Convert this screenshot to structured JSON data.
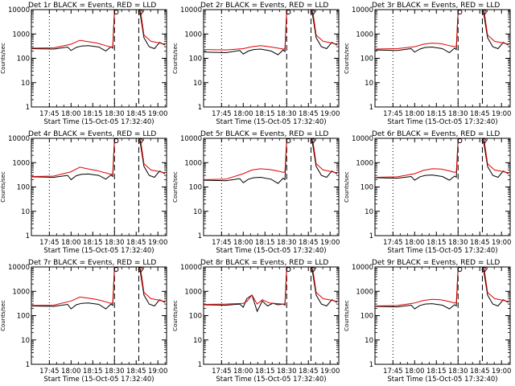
{
  "figure": {
    "shared_xlabel": "Start Time (15-Oct-05 17:32:40)"
  },
  "chart_data": [
    {
      "type": "line",
      "title": "Det 1r BLACK = Events, RED = LLD",
      "ylabel": "Counts/sec",
      "xlabel": "Start Time (15-Oct-05 17:32:40)",
      "yscale": "log",
      "ylim": [
        1,
        10000
      ],
      "xlim": [
        17.543,
        19.1
      ],
      "yticks": [
        "1",
        "10",
        "100",
        "1000",
        "10000"
      ],
      "xticks": [
        "17:45",
        "18:00",
        "18:15",
        "18:30",
        "18:45",
        "19:00"
      ],
      "vlines": [
        {
          "x": 17.75,
          "style": "dotted"
        },
        {
          "x": 18.5,
          "style": "dashed"
        },
        {
          "x": 18.78,
          "style": "dashed"
        }
      ],
      "series": [
        {
          "name": "Events",
          "color": "#000000",
          "x": [
            17.55,
            17.8,
            17.96,
            18.0,
            18.06,
            18.12,
            18.2,
            18.32,
            18.4,
            18.46,
            18.48,
            18.5,
            18.515,
            18.53
          ],
          "y": [
            250,
            240,
            290,
            210,
            280,
            320,
            330,
            290,
            200,
            300,
            260,
            9500,
            12000,
            12000
          ]
        },
        {
          "name": "LLD",
          "color": "#e00000",
          "x": [
            17.55,
            17.8,
            18.0,
            18.1,
            18.2,
            18.3,
            18.4,
            18.46,
            18.48,
            18.5,
            18.515,
            18.53
          ],
          "y": [
            260,
            270,
            380,
            550,
            480,
            420,
            330,
            290,
            300,
            9500,
            12000,
            12000
          ]
        }
      ]
    },
    {
      "type": "line",
      "title": "Det 2r BLACK = Events, RED = LLD",
      "ylabel": "Counts/sec",
      "xlabel": "Start Time (15-Oct-05 17:32:40)",
      "yscale": "log",
      "ylim": [
        1,
        10000
      ],
      "xlim": [
        17.543,
        19.1
      ],
      "yticks": [
        "1",
        "10",
        "100",
        "1000",
        "10000"
      ],
      "xticks": [
        "17:45",
        "18:00",
        "18:15",
        "18:30",
        "18:45",
        "19:00"
      ],
      "vlines": [
        {
          "x": 17.75,
          "style": "dotted"
        },
        {
          "x": 18.5,
          "style": "dashed"
        },
        {
          "x": 18.78,
          "style": "dashed"
        }
      ],
      "series": [
        {
          "name": "Events",
          "color": "#000000",
          "x": [
            17.55,
            17.8,
            17.96,
            18.0,
            18.06,
            18.12,
            18.2,
            18.32,
            18.4,
            18.46,
            18.48,
            18.5,
            18.515,
            18.53
          ],
          "y": [
            180,
            170,
            210,
            150,
            200,
            230,
            240,
            200,
            140,
            220,
            190,
            9500,
            12000,
            12000
          ]
        },
        {
          "name": "LLD",
          "color": "#e00000",
          "x": [
            17.55,
            17.8,
            18.0,
            18.1,
            18.2,
            18.3,
            18.4,
            18.46,
            18.48,
            18.5,
            18.515,
            18.53
          ],
          "y": [
            230,
            220,
            250,
            300,
            330,
            300,
            260,
            240,
            250,
            9500,
            12000,
            12000
          ]
        }
      ]
    },
    {
      "type": "line",
      "title": "Det 3r BLACK = Events, RED = LLD",
      "ylabel": "Counts/sec",
      "xlabel": "Start Time (15-Oct-05 17:32:40)",
      "yscale": "log",
      "ylim": [
        1,
        10000
      ],
      "xlim": [
        17.543,
        19.1
      ],
      "yticks": [
        "1",
        "10",
        "100",
        "1000",
        "10000"
      ],
      "xticks": [
        "17:45",
        "18:00",
        "18:15",
        "18:30",
        "18:45",
        "19:00"
      ],
      "vlines": [
        {
          "x": 17.75,
          "style": "dotted"
        },
        {
          "x": 18.5,
          "style": "dashed"
        },
        {
          "x": 18.78,
          "style": "dashed"
        }
      ],
      "series": [
        {
          "name": "Events",
          "color": "#000000",
          "x": [
            17.55,
            17.8,
            17.96,
            18.0,
            18.06,
            18.12,
            18.2,
            18.32,
            18.4,
            18.46,
            18.48,
            18.5,
            18.515,
            18.53
          ],
          "y": [
            220,
            210,
            250,
            180,
            240,
            280,
            290,
            250,
            170,
            260,
            230,
            9500,
            12000,
            12000
          ]
        },
        {
          "name": "LLD",
          "color": "#e00000",
          "x": [
            17.55,
            17.8,
            18.0,
            18.1,
            18.2,
            18.3,
            18.4,
            18.46,
            18.48,
            18.5,
            18.515,
            18.53
          ],
          "y": [
            240,
            250,
            300,
            380,
            420,
            400,
            330,
            300,
            310,
            9500,
            12000,
            12000
          ]
        }
      ]
    },
    {
      "type": "line",
      "title": "Det 4r BLACK = Events, RED = LLD",
      "ylabel": "Counts/sec",
      "xlabel": "Start Time (15-Oct-05 17:32:40)",
      "yscale": "log",
      "ylim": [
        1,
        10000
      ],
      "xlim": [
        17.543,
        19.1
      ],
      "yticks": [
        "1",
        "10",
        "100",
        "1000",
        "10000"
      ],
      "xticks": [
        "17:45",
        "18:00",
        "18:15",
        "18:30",
        "18:45",
        "19:00"
      ],
      "vlines": [
        {
          "x": 17.75,
          "style": "dotted"
        },
        {
          "x": 18.5,
          "style": "dashed"
        },
        {
          "x": 18.78,
          "style": "dashed"
        }
      ],
      "series": [
        {
          "name": "Events",
          "color": "#000000",
          "x": [
            17.55,
            17.8,
            17.96,
            18.0,
            18.06,
            18.12,
            18.2,
            18.32,
            18.4,
            18.46,
            18.48,
            18.5,
            18.515,
            18.53
          ],
          "y": [
            260,
            250,
            300,
            200,
            290,
            330,
            340,
            300,
            210,
            310,
            270,
            9500,
            12000,
            12000
          ]
        },
        {
          "name": "LLD",
          "color": "#e00000",
          "x": [
            17.55,
            17.8,
            18.0,
            18.1,
            18.2,
            18.3,
            18.4,
            18.46,
            18.48,
            18.5,
            18.515,
            18.53
          ],
          "y": [
            270,
            280,
            420,
            650,
            550,
            470,
            380,
            330,
            340,
            9500,
            12000,
            12000
          ]
        }
      ]
    },
    {
      "type": "line",
      "title": "Det 5r BLACK = Events, RED = LLD",
      "ylabel": "Counts/sec",
      "xlabel": "Start Time (15-Oct-05 17:32:40)",
      "yscale": "log",
      "ylim": [
        1,
        10000
      ],
      "xlim": [
        17.543,
        19.1
      ],
      "yticks": [
        "1",
        "10",
        "100",
        "1000",
        "10000"
      ],
      "xticks": [
        "17:45",
        "18:00",
        "18:15",
        "18:30",
        "18:45",
        "19:00"
      ],
      "vlines": [
        {
          "x": 17.75,
          "style": "dotted"
        },
        {
          "x": 18.5,
          "style": "dashed"
        },
        {
          "x": 18.78,
          "style": "dashed"
        }
      ],
      "series": [
        {
          "name": "Events",
          "color": "#000000",
          "x": [
            17.55,
            17.8,
            17.96,
            18.0,
            18.06,
            18.12,
            18.2,
            18.32,
            18.4,
            18.46,
            18.48,
            18.5,
            18.515,
            18.53
          ],
          "y": [
            190,
            180,
            220,
            150,
            210,
            240,
            250,
            210,
            140,
            230,
            200,
            9500,
            12000,
            12000
          ]
        },
        {
          "name": "LLD",
          "color": "#e00000",
          "x": [
            17.55,
            17.8,
            18.0,
            18.1,
            18.2,
            18.3,
            18.4,
            18.46,
            18.48,
            18.5,
            18.515,
            18.53
          ],
          "y": [
            200,
            210,
            350,
            500,
            560,
            520,
            450,
            400,
            420,
            9500,
            12000,
            12000
          ]
        }
      ]
    },
    {
      "type": "line",
      "title": "Det 6r BLACK = Events, RED = LLD",
      "ylabel": "Counts/sec",
      "xlabel": "Start Time (15-Oct-05 17:32:40)",
      "yscale": "log",
      "ylim": [
        1,
        10000
      ],
      "xlim": [
        17.543,
        19.1
      ],
      "yticks": [
        "1",
        "10",
        "100",
        "1000",
        "10000"
      ],
      "xticks": [
        "17:45",
        "18:00",
        "18:15",
        "18:30",
        "18:45",
        "19:00"
      ],
      "vlines": [
        {
          "x": 17.75,
          "style": "dotted"
        },
        {
          "x": 18.5,
          "style": "dashed"
        },
        {
          "x": 18.78,
          "style": "dashed"
        }
      ],
      "series": [
        {
          "name": "Events",
          "color": "#000000",
          "x": [
            17.55,
            17.8,
            17.96,
            18.0,
            18.06,
            18.12,
            18.2,
            18.32,
            18.4,
            18.46,
            18.48,
            18.5,
            18.515,
            18.53
          ],
          "y": [
            240,
            230,
            270,
            190,
            260,
            300,
            310,
            270,
            190,
            280,
            250,
            9500,
            12000,
            12000
          ]
        },
        {
          "name": "LLD",
          "color": "#e00000",
          "x": [
            17.55,
            17.8,
            18.0,
            18.1,
            18.2,
            18.3,
            18.4,
            18.46,
            18.48,
            18.5,
            18.515,
            18.53
          ],
          "y": [
            250,
            260,
            350,
            480,
            560,
            550,
            460,
            400,
            420,
            9500,
            12000,
            12000
          ]
        }
      ]
    },
    {
      "type": "line",
      "title": "Det 7r BLACK = Events, RED = LLD",
      "ylabel": "Counts/sec",
      "xlabel": "Start Time (15-Oct-05 17:32:40)",
      "yscale": "log",
      "ylim": [
        1,
        10000
      ],
      "xlim": [
        17.543,
        19.1
      ],
      "yticks": [
        "1",
        "10",
        "100",
        "1000",
        "10000"
      ],
      "xticks": [
        "17:45",
        "18:00",
        "18:15",
        "18:30",
        "18:45",
        "19:00"
      ],
      "vlines": [
        {
          "x": 17.75,
          "style": "dotted"
        },
        {
          "x": 18.5,
          "style": "dashed"
        },
        {
          "x": 18.78,
          "style": "dashed"
        }
      ],
      "series": [
        {
          "name": "Events",
          "color": "#000000",
          "x": [
            17.55,
            17.8,
            17.96,
            18.0,
            18.06,
            18.12,
            18.2,
            18.32,
            18.4,
            18.46,
            18.48,
            18.5,
            18.515,
            18.53
          ],
          "y": [
            250,
            240,
            290,
            190,
            280,
            320,
            330,
            290,
            190,
            300,
            260,
            9500,
            12000,
            12000
          ]
        },
        {
          "name": "LLD",
          "color": "#e00000",
          "x": [
            17.55,
            17.8,
            18.0,
            18.1,
            18.2,
            18.3,
            18.4,
            18.46,
            18.48,
            18.5,
            18.515,
            18.53
          ],
          "y": [
            260,
            270,
            400,
            580,
            520,
            460,
            370,
            320,
            330,
            9500,
            12000,
            12000
          ]
        }
      ]
    },
    {
      "type": "line",
      "title": "Det 8r BLACK = Events, RED = LLD",
      "ylabel": "Counts/sec",
      "xlabel": "Start Time (15-Oct-05 17:32:40)",
      "yscale": "log",
      "ylim": [
        1,
        10000
      ],
      "xlim": [
        17.543,
        19.1
      ],
      "yticks": [
        "1",
        "10",
        "100",
        "1000",
        "10000"
      ],
      "xticks": [
        "17:45",
        "18:00",
        "18:15",
        "18:30",
        "18:45",
        "19:00"
      ],
      "vlines": [
        {
          "x": 17.75,
          "style": "dotted"
        },
        {
          "x": 18.5,
          "style": "dashed"
        },
        {
          "x": 18.78,
          "style": "dashed"
        }
      ],
      "series": [
        {
          "name": "Events",
          "color": "#000000",
          "x": [
            17.55,
            17.8,
            17.96,
            18.0,
            18.04,
            18.1,
            18.16,
            18.22,
            18.28,
            18.34,
            18.4,
            18.46,
            18.48,
            18.5,
            18.515,
            18.53
          ],
          "y": [
            280,
            270,
            300,
            220,
            500,
            700,
            150,
            400,
            250,
            320,
            280,
            300,
            270,
            9500,
            12000,
            12000
          ]
        },
        {
          "name": "LLD",
          "color": "#e00000",
          "x": [
            17.55,
            17.8,
            18.0,
            18.04,
            18.1,
            18.16,
            18.22,
            18.3,
            18.4,
            18.46,
            18.48,
            18.5,
            18.515,
            18.53
          ],
          "y": [
            290,
            300,
            320,
            380,
            700,
            300,
            450,
            330,
            310,
            300,
            310,
            9500,
            12000,
            12000
          ]
        }
      ]
    },
    {
      "type": "line",
      "title": "Det 9r BLACK = Events, RED = LLD",
      "ylabel": "Counts/sec",
      "xlabel": "Start Time (15-Oct-05 17:32:40)",
      "yscale": "log",
      "ylim": [
        1,
        10000
      ],
      "xlim": [
        17.543,
        19.1
      ],
      "yticks": [
        "1",
        "10",
        "100",
        "1000",
        "10000"
      ],
      "xticks": [
        "17:45",
        "18:00",
        "18:15",
        "18:30",
        "18:45",
        "19:00"
      ],
      "vlines": [
        {
          "x": 17.75,
          "style": "dotted"
        },
        {
          "x": 18.5,
          "style": "dashed"
        },
        {
          "x": 18.78,
          "style": "dashed"
        }
      ],
      "series": [
        {
          "name": "Events",
          "color": "#000000",
          "x": [
            17.55,
            17.8,
            17.96,
            18.0,
            18.06,
            18.12,
            18.2,
            18.32,
            18.4,
            18.46,
            18.48,
            18.5,
            18.515,
            18.53
          ],
          "y": [
            240,
            230,
            270,
            190,
            260,
            300,
            310,
            270,
            190,
            280,
            250,
            9500,
            12000,
            12000
          ]
        },
        {
          "name": "LLD",
          "color": "#e00000",
          "x": [
            17.55,
            17.8,
            18.0,
            18.1,
            18.2,
            18.3,
            18.4,
            18.46,
            18.48,
            18.5,
            18.515,
            18.53
          ],
          "y": [
            250,
            260,
            330,
            420,
            470,
            450,
            380,
            330,
            350,
            9500,
            12000,
            12000
          ]
        }
      ]
    }
  ]
}
